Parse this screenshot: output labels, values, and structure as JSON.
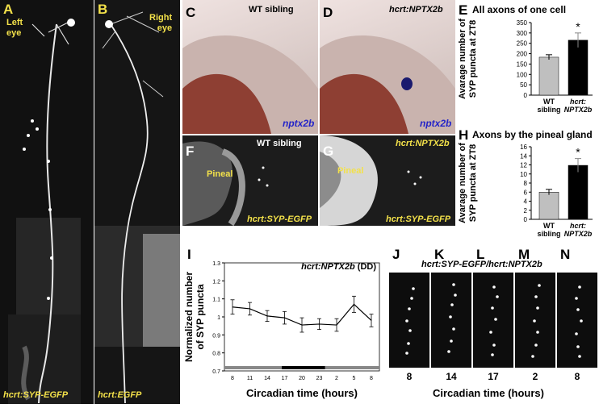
{
  "panels": {
    "A": {
      "label": "A",
      "eye": "Left\neye",
      "eye_line1": "Left",
      "eye_line2": "eye",
      "transgene": "hcrt:SYP-EGFP"
    },
    "B": {
      "label": "B",
      "eye_line1": "Right",
      "eye_line2": "eye",
      "transgene": "hcrt:EGFP"
    },
    "C": {
      "label": "C",
      "title": "WT sibling",
      "probe": "nptx2b"
    },
    "D": {
      "label": "D",
      "title": "hcrt:NPTX2b",
      "probe": "nptx2b"
    },
    "F": {
      "label": "F",
      "title": "WT sibling",
      "region": "Pineal",
      "transgene": "hcrt:SYP-EGFP"
    },
    "G": {
      "label": "G",
      "title": "hcrt:NPTX2b",
      "region": "Pineal",
      "transgene": "hcrt:SYP-EGFP"
    },
    "E": {
      "label": "E",
      "title": "All axons of one cell",
      "ylabel_line1": "Avarage  number  of",
      "ylabel_line2": "SYP puncta at ZT8",
      "star": "*"
    },
    "H": {
      "label": "H",
      "title": "Axons by the pineal gland",
      "ylabel_line1": "Avarage  number  of",
      "ylabel_line2": "SYP puncta at ZT8",
      "star": "*"
    },
    "I": {
      "label": "I",
      "title": "hcrt:NPTX2b",
      "title_suffix": " (DD)",
      "ylabel_line1": "Normalized number",
      "ylabel_line2": "of SYP puncta",
      "xlabel": "Circadian time (hours)"
    },
    "J": {
      "label": "J",
      "time": "8"
    },
    "K": {
      "label": "K",
      "time": "14"
    },
    "L": {
      "label": "L",
      "time": "17"
    },
    "M": {
      "label": "M",
      "time": "2"
    },
    "N": {
      "label": "N",
      "time": "8"
    },
    "JN": {
      "title": "hcrt:SYP-EGFP/hcrt:NPTX2b",
      "xlabel": "Circadian time (hours)"
    }
  },
  "colors": {
    "wt_bar": "#bfbfbf",
    "tg_bar": "#000000",
    "label_yellow": "#f3e14a",
    "probe_blue": "#2424c8",
    "stain": "#1a1a6e"
  },
  "chart_data": [
    {
      "type": "bar",
      "title": "All axons of one cell",
      "categories": [
        "WT sibling",
        "hcrt: NPTX2b"
      ],
      "category_lines": [
        [
          "WT",
          "sibling"
        ],
        [
          "hcrt:",
          "NPTX2b"
        ]
      ],
      "values": [
        183,
        265
      ],
      "errors": [
        12,
        35
      ],
      "ylabel": "Avarage number of SYP puncta at ZT8",
      "ylim": [
        0,
        350
      ],
      "yticks": [
        0,
        50,
        100,
        150,
        200,
        250,
        300,
        350
      ],
      "annotation": "*"
    },
    {
      "type": "bar",
      "title": "Axons by the pineal gland",
      "categories": [
        "WT sibling",
        "hcrt: NPTX2b"
      ],
      "category_lines": [
        [
          "WT",
          "sibling"
        ],
        [
          "hcrt:",
          "NPTX2b"
        ]
      ],
      "values": [
        6.0,
        11.9
      ],
      "errors": [
        0.6,
        1.5
      ],
      "ylabel": "Avarage number of SYP puncta at ZT8",
      "ylim": [
        0,
        16
      ],
      "yticks": [
        0,
        2,
        4,
        6,
        8,
        10,
        12,
        14,
        16
      ],
      "annotation": "*"
    },
    {
      "type": "line",
      "title": "hcrt:NPTX2b (DD)",
      "x": [
        "8",
        "11",
        "14",
        "17",
        "20",
        "23",
        "2",
        "5",
        "8"
      ],
      "values": [
        1.055,
        1.045,
        1.005,
        0.995,
        0.955,
        0.96,
        0.955,
        1.07,
        0.98
      ],
      "errors": [
        0.04,
        0.035,
        0.03,
        0.035,
        0.04,
        0.03,
        0.035,
        0.045,
        0.035
      ],
      "ylabel": "Normalized number of SYP puncta",
      "xlabel": "Circadian time (hours)",
      "ylim": [
        0.7,
        1.3
      ],
      "yticks": [
        "0.7",
        "0.8",
        "0.9",
        "1",
        "1.1",
        "1.2",
        "1.3"
      ]
    }
  ]
}
